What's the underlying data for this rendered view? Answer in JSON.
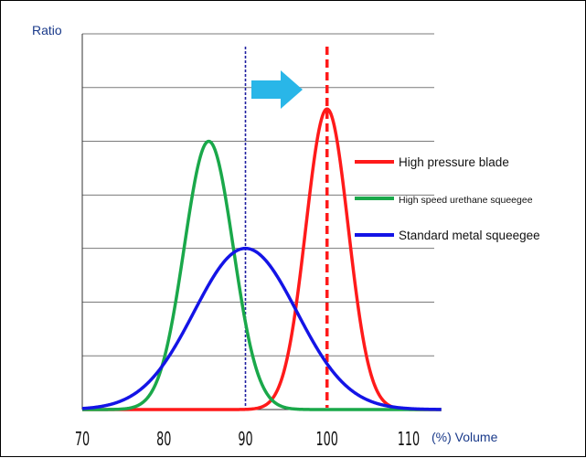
{
  "chart_data": {
    "type": "line",
    "title": "",
    "ylabel": "Ratio",
    "xlabel": "(%) Volume",
    "xlim": [
      70,
      114
    ],
    "ylim": [
      0,
      1.0
    ],
    "x_ticks": [
      70,
      80,
      90,
      100,
      110
    ],
    "y_gridlines": [
      0.143,
      0.286,
      0.429,
      0.571,
      0.714,
      0.857,
      1.0
    ],
    "grid": "horizontal",
    "legend_position": "right",
    "series": [
      {
        "name": "High pressure blade",
        "color": "#ff1a1a",
        "peak_x": 100,
        "peak_y": 0.8,
        "sigma": 2.6
      },
      {
        "name": "High speed urethane squeegee",
        "color": "#1aa84a",
        "peak_x": 85.5,
        "peak_y": 0.714,
        "sigma": 3.0
      },
      {
        "name": "Standard metal squeegee",
        "color": "#1414e6",
        "peak_x": 90,
        "peak_y": 0.429,
        "sigma": 6.3
      }
    ],
    "reference_lines": [
      {
        "x": 90,
        "color": "#1e1ea0",
        "style": "dotted"
      },
      {
        "x": 100,
        "color": "#ff1a1a",
        "style": "dashed"
      }
    ],
    "annotations": [
      {
        "type": "arrow",
        "color": "#29b6e8",
        "direction": "right"
      }
    ]
  }
}
